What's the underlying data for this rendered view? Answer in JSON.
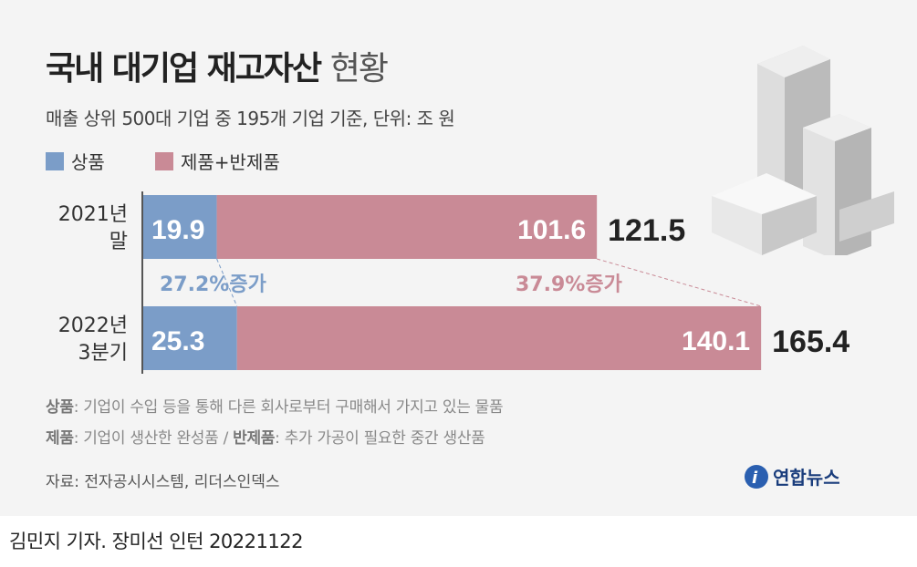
{
  "title_bold": "국내 대기업 재고자산",
  "title_light": "현황",
  "subtitle": "매출 상위 500대 기업 중 195개 기업 기준, 단위: 조 원",
  "notes": [
    {
      "term": "상품",
      "text": ": 기업이 수입 등을 통해 다른 회사로부터 구매해서 가지고 있는 물품"
    },
    {
      "term": "제품",
      "text": ": 기업이 생산한 완성품 / ",
      "term2": "반제품",
      "text2": ": 추가 가공이 필요한 중간 생산품"
    }
  ],
  "source": "자료: 전자공시시스템, 리더스인덱스",
  "logo": "연합뉴스",
  "byline": "김민지 기자. 장미선 인턴  20221122",
  "chart_data": {
    "type": "bar",
    "stacked": true,
    "orientation": "horizontal",
    "categories": [
      [
        "2021년",
        "말"
      ],
      [
        "2022년",
        "3분기"
      ]
    ],
    "series": [
      {
        "name": "상품",
        "color": "#7b9dc8",
        "values": [
          19.9,
          25.3
        ]
      },
      {
        "name": "제품+반제품",
        "color": "#c98a96",
        "values": [
          101.6,
          140.1
        ]
      }
    ],
    "totals": [
      121.5,
      165.4
    ],
    "annotations": [
      {
        "text": "27.2%증가",
        "color": "#7b9dc8"
      },
      {
        "text": "37.9%증가",
        "color": "#c98a96"
      }
    ],
    "legend": "top-left"
  }
}
